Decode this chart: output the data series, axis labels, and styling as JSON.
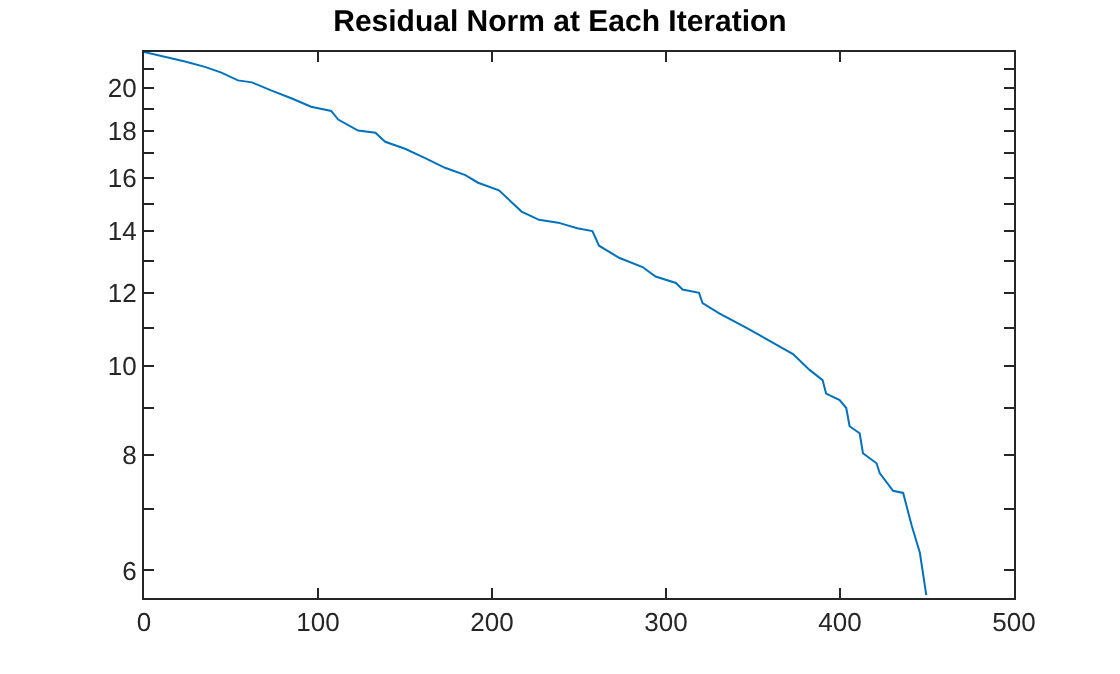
{
  "chart_data": {
    "type": "line",
    "title": "Residual Norm at Each Iteration",
    "x": [
      0,
      23,
      35,
      44.5,
      54,
      62,
      73,
      85,
      96,
      107.6,
      111.6,
      123,
      133,
      138.6,
      150,
      161.6,
      173,
      184.7,
      192,
      204,
      217,
      227,
      238,
      249,
      257.7,
      261.5,
      273,
      286.5,
      294,
      305.7,
      309.5,
      319,
      321,
      330.6,
      346,
      357.5,
      373,
      382.5,
      390,
      392,
      399.8,
      403.6,
      405.5,
      411.3,
      413.2,
      421,
      422.8,
      430.5,
      436.3,
      441.2,
      445.9,
      449.6
    ],
    "series": [
      {
        "color": "#0072bd",
        "values": [
          21.9,
          21.4,
          21.1,
          20.8,
          20.4,
          20.3,
          19.9,
          19.5,
          19.1,
          18.9,
          18.5,
          18.0,
          17.9,
          17.5,
          17.2,
          16.8,
          16.4,
          16.1,
          15.8,
          15.5,
          14.7,
          14.4,
          14.3,
          14.1,
          14.0,
          13.5,
          13.1,
          12.8,
          12.5,
          12.3,
          12.1,
          12.0,
          11.7,
          11.4,
          11.0,
          10.7,
          10.3,
          9.9,
          9.65,
          9.33,
          9.18,
          9.0,
          8.6,
          8.45,
          8.04,
          7.84,
          7.65,
          7.32,
          7.28,
          6.71,
          6.27,
          5.64
        ]
      }
    ],
    "xlim": [
      0,
      500
    ],
    "xticks": [
      0,
      100,
      200,
      300,
      400,
      500
    ],
    "ylim": [
      5.6,
      21.9
    ],
    "yticks": [
      6,
      {
        "value": 7,
        "label": null
      },
      8,
      {
        "value": 9,
        "label": null
      },
      10,
      {
        "value": 11,
        "label": null
      },
      12,
      {
        "value": 13,
        "label": null
      },
      14,
      {
        "value": 15,
        "label": null
      },
      16,
      {
        "value": 17,
        "label": null
      },
      18,
      {
        "value": 19,
        "label": null
      },
      20,
      {
        "value": 21,
        "label": null
      }
    ],
    "log": "y",
    "marker": "none",
    "line_style": "solid"
  }
}
